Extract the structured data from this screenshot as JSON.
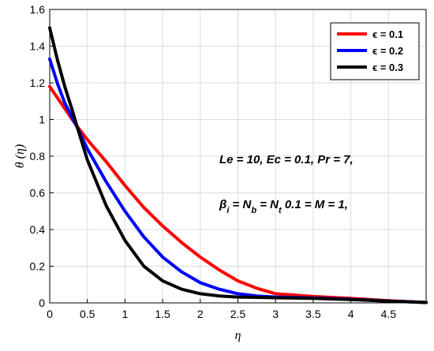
{
  "chart_data": {
    "type": "line",
    "xlabel": "η",
    "ylabel": "θ (η)",
    "xlim": [
      0,
      5
    ],
    "ylim": [
      0,
      1.6
    ],
    "xticks": [
      "0",
      "0.5",
      "1",
      "1.5",
      "2",
      "2.5",
      "3",
      "3.5",
      "4",
      "4.5"
    ],
    "xtick_values": [
      0,
      0.5,
      1,
      1.5,
      2,
      2.5,
      3,
      3.5,
      4,
      4.5
    ],
    "yticks": [
      "0",
      "0.2",
      "0.4",
      "0.6",
      "0.8",
      "1",
      "1.2",
      "1.4",
      "1.6"
    ],
    "ytick_values": [
      0,
      0.2,
      0.4,
      0.6,
      0.8,
      1,
      1.2,
      1.4,
      1.6
    ],
    "grid": true,
    "legend_position": "top-right",
    "annotations": [
      "Le = 10, Ec = 0.1,  Pr = 7,",
      "β_i = N_b = N_t 0.1 = M = 1,"
    ],
    "series": [
      {
        "name": "ϵ = 0.1",
        "color": "#ff0000",
        "x": [
          0,
          0.1,
          0.2,
          0.3,
          0.35,
          0.5,
          0.75,
          1.0,
          1.25,
          1.5,
          1.75,
          2.0,
          2.25,
          2.5,
          2.75,
          3.0,
          3.5,
          4.0,
          4.5,
          5.0
        ],
        "y": [
          1.18,
          1.12,
          1.06,
          1.0,
          0.97,
          0.89,
          0.77,
          0.64,
          0.52,
          0.42,
          0.33,
          0.25,
          0.18,
          0.12,
          0.08,
          0.05,
          0.035,
          0.025,
          0.012,
          0.002
        ]
      },
      {
        "name": "ϵ = 0.2",
        "color": "#0000ff",
        "x": [
          0,
          0.1,
          0.2,
          0.3,
          0.35,
          0.5,
          0.75,
          1.0,
          1.25,
          1.5,
          1.75,
          2.0,
          2.25,
          2.5,
          2.75,
          3.0,
          3.5,
          4.0,
          4.5,
          5.0
        ],
        "y": [
          1.33,
          1.2,
          1.09,
          1.01,
          0.97,
          0.84,
          0.66,
          0.5,
          0.36,
          0.25,
          0.17,
          0.11,
          0.075,
          0.05,
          0.038,
          0.032,
          0.027,
          0.02,
          0.01,
          0.002
        ]
      },
      {
        "name": "ϵ = 0.3",
        "color": "#000000",
        "x": [
          0,
          0.1,
          0.2,
          0.3,
          0.35,
          0.5,
          0.75,
          1.0,
          1.25,
          1.5,
          1.75,
          2.0,
          2.25,
          2.5,
          2.75,
          3.0,
          3.5,
          4.0,
          4.5,
          5.0
        ],
        "y": [
          1.5,
          1.33,
          1.18,
          1.05,
          0.98,
          0.78,
          0.53,
          0.34,
          0.2,
          0.12,
          0.075,
          0.05,
          0.038,
          0.032,
          0.03,
          0.028,
          0.025,
          0.018,
          0.01,
          0.002
        ]
      }
    ]
  }
}
